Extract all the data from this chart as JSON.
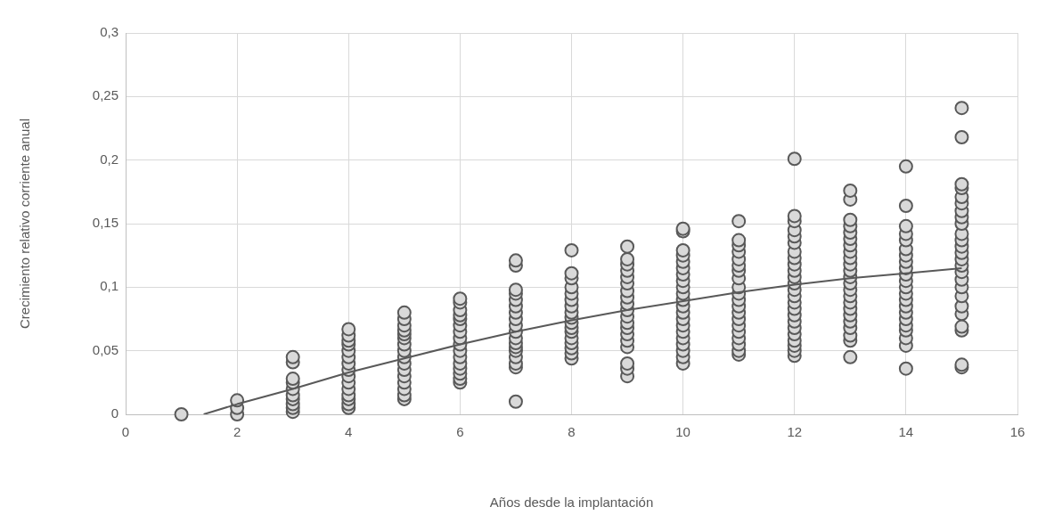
{
  "chart_data": {
    "type": "scatter",
    "xlabel": "Años desde la implantación",
    "ylabel": "Crecimiento relativo corriente anual",
    "xlim": [
      0,
      16
    ],
    "xticks": [
      0,
      2,
      4,
      6,
      8,
      10,
      12,
      14,
      16
    ],
    "ylim": [
      0,
      0.3
    ],
    "yticks": [
      0,
      {
        "value": 0.05,
        "label": "0,05"
      },
      {
        "value": 0.1,
        "label": "0,1"
      },
      {
        "value": 0.15,
        "label": "0,15"
      },
      {
        "value": 0.2,
        "label": "0,2"
      },
      {
        "value": 0.25,
        "label": "0,25"
      },
      {
        "value": 0.3,
        "label": "0,3"
      }
    ],
    "grid": true,
    "legend": false,
    "series": [
      {
        "type": "scatter",
        "color": "#d9d9d9",
        "marker": "circle",
        "x": [
          1,
          2,
          2,
          2,
          3,
          3,
          3,
          3,
          3,
          3,
          3,
          3,
          3,
          3,
          4,
          4,
          4,
          4,
          4,
          4,
          4,
          4,
          4,
          4,
          4,
          4,
          4,
          4,
          4,
          5,
          5,
          5,
          5,
          5,
          5,
          5,
          5,
          5,
          5,
          5,
          5,
          5,
          5,
          5,
          5,
          6,
          6,
          6,
          6,
          6,
          6,
          6,
          6,
          6,
          6,
          6,
          6,
          6,
          6,
          6,
          6,
          7,
          7,
          7,
          7,
          7,
          7,
          7,
          7,
          7,
          7,
          7,
          7,
          7,
          7,
          7,
          7,
          7,
          7,
          8,
          8,
          8,
          8,
          8,
          8,
          8,
          8,
          8,
          8,
          8,
          8,
          8,
          8,
          8,
          8,
          8,
          9,
          9,
          9,
          9,
          9,
          9,
          9,
          9,
          9,
          9,
          9,
          9,
          9,
          9,
          9,
          9,
          9,
          9,
          9,
          10,
          10,
          10,
          10,
          10,
          10,
          10,
          10,
          10,
          10,
          10,
          10,
          10,
          10,
          10,
          10,
          10,
          10,
          10,
          10,
          10,
          11,
          11,
          11,
          11,
          11,
          11,
          11,
          11,
          11,
          11,
          11,
          11,
          11,
          11,
          11,
          11,
          11,
          11,
          11,
          11,
          12,
          12,
          12,
          12,
          12,
          12,
          12,
          12,
          12,
          12,
          12,
          12,
          12,
          12,
          12,
          12,
          12,
          12,
          12,
          12,
          12,
          12,
          12,
          12,
          13,
          13,
          13,
          13,
          13,
          13,
          13,
          13,
          13,
          13,
          13,
          13,
          13,
          13,
          13,
          13,
          13,
          13,
          13,
          13,
          13,
          13,
          13,
          14,
          14,
          14,
          14,
          14,
          14,
          14,
          14,
          14,
          14,
          14,
          14,
          14,
          14,
          14,
          14,
          14,
          14,
          14,
          14,
          14,
          14,
          15,
          15,
          15,
          15,
          15,
          15,
          15,
          15,
          15,
          15,
          15,
          15,
          15,
          15,
          15,
          15,
          15,
          15,
          15,
          15,
          15,
          15,
          15,
          15,
          15
        ],
        "values": [
          0,
          0,
          0.005,
          0.011,
          0.002,
          0.005,
          0.008,
          0.012,
          0.015,
          0.02,
          0.025,
          0.028,
          0.041,
          0.045,
          0.005,
          0.008,
          0.012,
          0.015,
          0.02,
          0.025,
          0.03,
          0.035,
          0.04,
          0.045,
          0.05,
          0.055,
          0.058,
          0.062,
          0.067,
          0.012,
          0.015,
          0.02,
          0.025,
          0.03,
          0.035,
          0.04,
          0.045,
          0.05,
          0.055,
          0.06,
          0.063,
          0.066,
          0.07,
          0.075,
          0.08,
          0.025,
          0.028,
          0.032,
          0.036,
          0.04,
          0.045,
          0.05,
          0.055,
          0.06,
          0.065,
          0.07,
          0.075,
          0.078,
          0.082,
          0.088,
          0.091,
          0.01,
          0.037,
          0.04,
          0.045,
          0.05,
          0.053,
          0.056,
          0.06,
          0.065,
          0.07,
          0.075,
          0.08,
          0.085,
          0.09,
          0.095,
          0.098,
          0.117,
          0.121,
          0.044,
          0.048,
          0.052,
          0.056,
          0.06,
          0.065,
          0.068,
          0.072,
          0.076,
          0.08,
          0.085,
          0.09,
          0.095,
          0.1,
          0.107,
          0.111,
          0.129,
          0.03,
          0.036,
          0.04,
          0.053,
          0.058,
          0.063,
          0.068,
          0.072,
          0.077,
          0.082,
          0.087,
          0.092,
          0.097,
          0.103,
          0.108,
          0.113,
          0.118,
          0.122,
          0.132,
          0.04,
          0.045,
          0.05,
          0.055,
          0.06,
          0.065,
          0.07,
          0.075,
          0.08,
          0.085,
          0.09,
          0.095,
          0.1,
          0.105,
          0.11,
          0.115,
          0.12,
          0.125,
          0.129,
          0.144,
          0.146,
          0.047,
          0.05,
          0.055,
          0.06,
          0.065,
          0.07,
          0.075,
          0.08,
          0.085,
          0.09,
          0.095,
          0.1,
          0.107,
          0.113,
          0.117,
          0.122,
          0.128,
          0.133,
          0.137,
          0.152,
          0.046,
          0.05,
          0.054,
          0.058,
          0.063,
          0.068,
          0.073,
          0.078,
          0.083,
          0.088,
          0.093,
          0.098,
          0.103,
          0.108,
          0.113,
          0.118,
          0.123,
          0.128,
          0.135,
          0.14,
          0.145,
          0.152,
          0.156,
          0.201,
          0.045,
          0.058,
          0.062,
          0.068,
          0.073,
          0.078,
          0.083,
          0.088,
          0.093,
          0.098,
          0.103,
          0.108,
          0.113,
          0.118,
          0.123,
          0.128,
          0.133,
          0.138,
          0.143,
          0.148,
          0.153,
          0.169,
          0.176,
          0.036,
          0.054,
          0.06,
          0.066,
          0.07,
          0.075,
          0.08,
          0.085,
          0.09,
          0.095,
          0.1,
          0.105,
          0.11,
          0.115,
          0.12,
          0.125,
          0.13,
          0.137,
          0.142,
          0.148,
          0.164,
          0.195,
          0.037,
          0.039,
          0.066,
          0.069,
          0.079,
          0.085,
          0.093,
          0.1,
          0.106,
          0.112,
          0.117,
          0.122,
          0.127,
          0.132,
          0.137,
          0.142,
          0.15,
          0.155,
          0.16,
          0.166,
          0.171,
          0.178,
          0.181,
          0.218,
          0.241
        ]
      },
      {
        "type": "line",
        "color": "#595959",
        "marker": "none",
        "line_style": "solid",
        "x": [
          1.4,
          2,
          3,
          4,
          5,
          6,
          7,
          8,
          9,
          10,
          11,
          12,
          13,
          14,
          15
        ],
        "values": [
          0,
          0.008,
          0.02,
          0.033,
          0.044,
          0.055,
          0.065,
          0.074,
          0.082,
          0.089,
          0.096,
          0.102,
          0.107,
          0.111,
          0.115
        ]
      }
    ]
  }
}
